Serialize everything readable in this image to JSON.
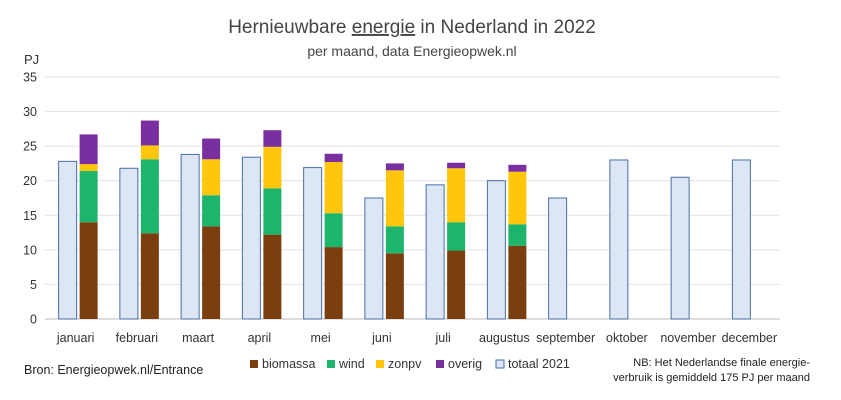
{
  "chart_data": {
    "type": "bar",
    "title_parts": [
      "Hernieuwbare ",
      "energie",
      " in Nederland in 2022"
    ],
    "subtitle": "per maand, data Energieopwek.nl",
    "ylabel": "PJ",
    "ylim": [
      0,
      35
    ],
    "yticks": [
      "0",
      "5",
      "10",
      "15",
      "20",
      "25",
      "30",
      "35"
    ],
    "grid": true,
    "categories": [
      "januari",
      "februari",
      "maart",
      "april",
      "mei",
      "juni",
      "juli",
      "augustus",
      "september",
      "oktober",
      "november",
      "december"
    ],
    "stacked_series": [
      {
        "name": "biomassa",
        "color": "#7b3f0f",
        "values": [
          14.0,
          12.4,
          13.4,
          12.2,
          10.4,
          9.5,
          9.9,
          10.6,
          null,
          null,
          null,
          null
        ]
      },
      {
        "name": "wind",
        "color": "#1db46b",
        "values": [
          7.4,
          10.7,
          4.5,
          6.7,
          4.9,
          3.9,
          4.1,
          3.1,
          null,
          null,
          null,
          null
        ]
      },
      {
        "name": "zonpv",
        "color": "#ffc60b",
        "values": [
          1.0,
          2.0,
          5.2,
          6.0,
          7.4,
          8.1,
          7.8,
          7.6,
          null,
          null,
          null,
          null
        ]
      },
      {
        "name": "overig",
        "color": "#7a2fa0",
        "values": [
          4.3,
          3.6,
          3.0,
          2.4,
          1.2,
          1.0,
          0.8,
          1.0,
          null,
          null,
          null,
          null
        ]
      }
    ],
    "comparison_series": {
      "name": "totaal 2021",
      "fill": "#dce6f5",
      "stroke": "#4a6fa5",
      "values": [
        22.8,
        21.8,
        23.8,
        23.4,
        21.9,
        17.5,
        19.4,
        20.0,
        17.5,
        23.0,
        20.5,
        23.0
      ]
    },
    "legend": [
      "biomassa",
      "wind",
      "zonpv",
      "overig",
      "totaal 2021"
    ],
    "source": "Bron: Energieopwek.nl/Entrance",
    "note_lines": [
      "NB: Het Nederlandse finale energie-",
      "verbruik is gemiddeld 175 PJ per maand"
    ]
  }
}
